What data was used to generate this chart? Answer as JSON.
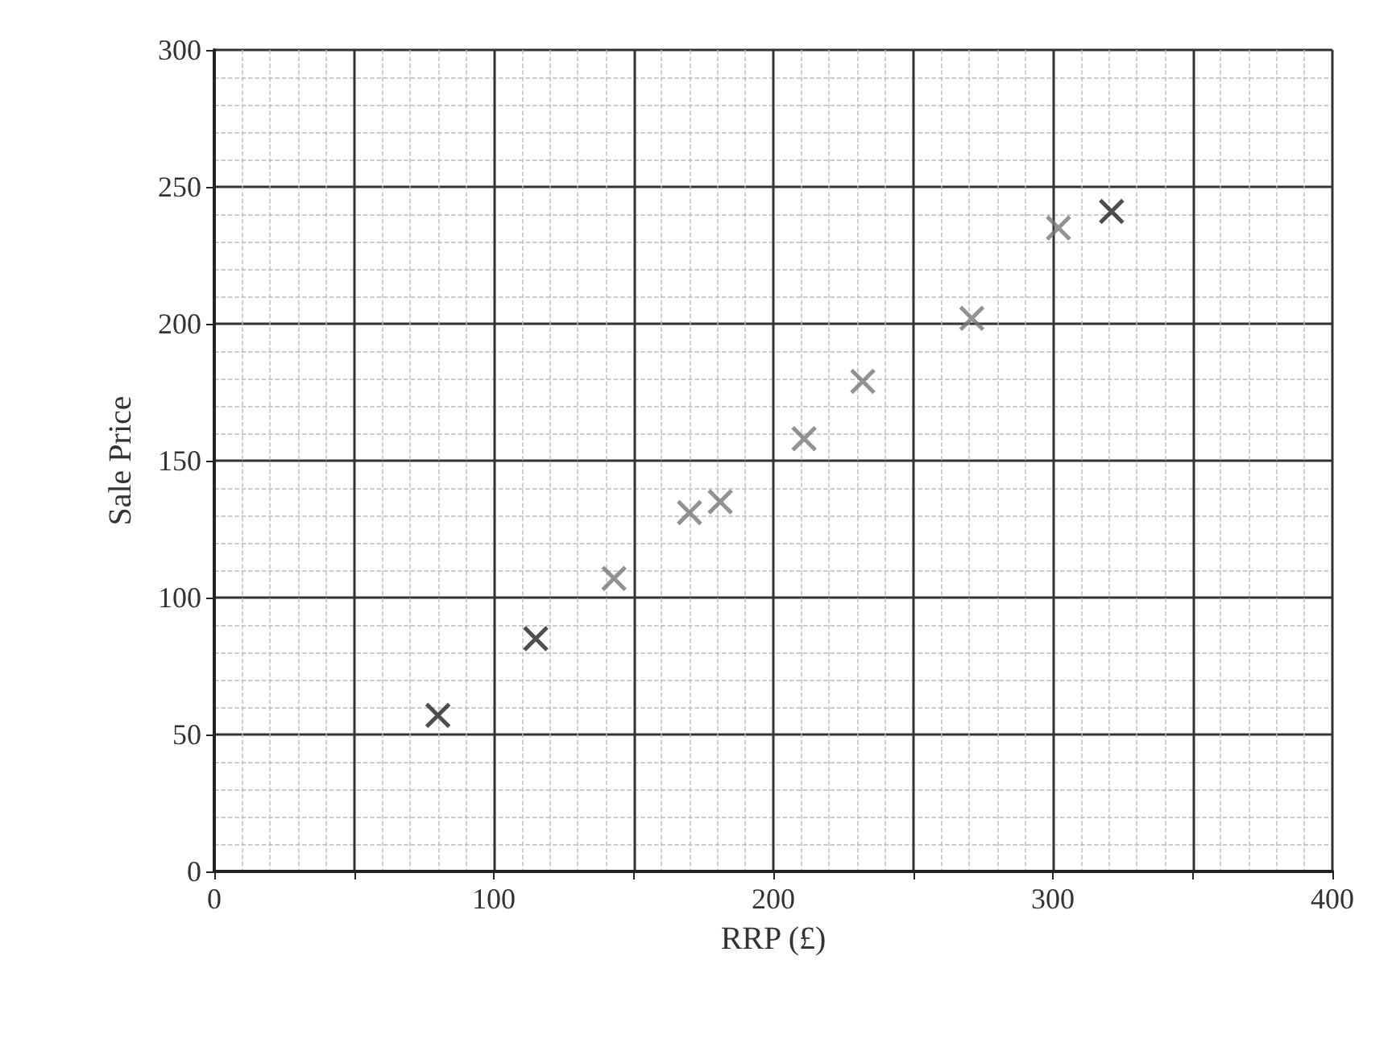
{
  "chart_data": {
    "type": "scatter",
    "xlabel": "RRP (£)",
    "ylabel": "Sale Price",
    "xlim": [
      0,
      400
    ],
    "ylim": [
      0,
      300
    ],
    "xticks": [
      0,
      {
        "value": 50,
        "label": null
      },
      100,
      {
        "value": 150,
        "label": null
      },
      200,
      {
        "value": 250,
        "label": null
      },
      300,
      {
        "value": 350,
        "label": null
      },
      400
    ],
    "yticks": [
      0,
      50,
      100,
      150,
      200,
      250,
      300
    ],
    "grid": true,
    "marker": "cross",
    "series": [
      {
        "color": "#222222",
        "x": [
          80,
          115,
          321
        ],
        "values": [
          57,
          85,
          241
        ]
      },
      {
        "color": "#777777",
        "x": [
          143,
          170,
          181,
          211,
          232,
          271,
          302
        ],
        "values": [
          107,
          131,
          135,
          158,
          179,
          202,
          235
        ]
      }
    ]
  }
}
